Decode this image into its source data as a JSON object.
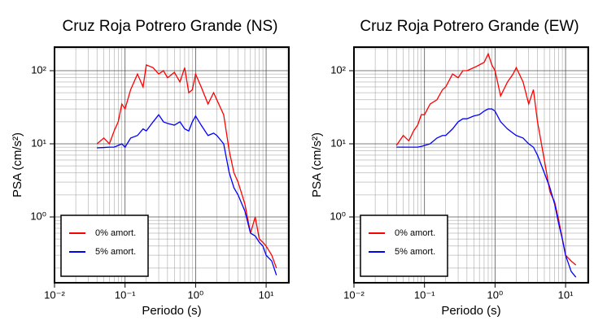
{
  "chart_data": [
    {
      "type": "line",
      "title": "Cruz Roja Potrero Grande (NS)",
      "x_label": "Periodo (s)",
      "y_label": "PSA (cm/s²)",
      "log_x": true,
      "log_y": true,
      "grid": true,
      "legend": "lower left",
      "xlim": [
        0.01,
        21
      ],
      "ylim": [
        0.126,
        210
      ],
      "xticks": [
        {
          "value": 0.01,
          "label": "10⁻²"
        },
        {
          "value": 0.1,
          "label": "10⁻¹"
        },
        {
          "value": 1,
          "label": "10⁰"
        },
        {
          "value": 10,
          "label": "10¹"
        }
      ],
      "yticks": [
        {
          "value": 1,
          "label": "10⁰"
        },
        {
          "value": 10,
          "label": "10¹"
        },
        {
          "value": 100,
          "label": "10²"
        }
      ],
      "x": [
        0.04,
        0.05,
        0.06,
        0.07,
        0.08,
        0.09,
        0.1,
        0.12,
        0.15,
        0.18,
        0.2,
        0.25,
        0.3,
        0.35,
        0.4,
        0.5,
        0.6,
        0.7,
        0.8,
        0.9,
        1,
        1.2,
        1.5,
        1.8,
        2,
        2.5,
        3,
        3.5,
        4,
        5,
        6,
        7,
        8,
        9,
        10,
        12,
        14
      ],
      "series": [
        {
          "name": "0% amort.",
          "color": "#ff0000",
          "values": [
            10,
            12,
            10,
            15,
            20,
            35,
            30,
            55,
            90,
            60,
            120,
            110,
            90,
            100,
            80,
            95,
            70,
            110,
            50,
            55,
            90,
            60,
            35,
            50,
            40,
            25,
            8,
            4,
            3,
            1.5,
            0.6,
            1.0,
            0.5,
            0.45,
            0.4,
            0.3,
            0.2
          ]
        },
        {
          "name": "5% amort.",
          "color": "#0000ff",
          "values": [
            8.8,
            8.9,
            9,
            9,
            9.5,
            10,
            9,
            12,
            13,
            16,
            15,
            20,
            25,
            20,
            19,
            18,
            20,
            16,
            15,
            20,
            24,
            18,
            13,
            14,
            13,
            10,
            4,
            2.5,
            2,
            1.2,
            0.6,
            0.55,
            0.45,
            0.4,
            0.3,
            0.25,
            0.16
          ]
        }
      ]
    },
    {
      "type": "line",
      "title": "Cruz Roja Potrero Grande (EW)",
      "x_label": "Periodo (s)",
      "y_label": "PSA (cm/s²)",
      "log_x": true,
      "log_y": true,
      "grid": true,
      "legend": "lower left",
      "xlim": [
        0.01,
        21
      ],
      "ylim": [
        0.126,
        210
      ],
      "xticks": [
        {
          "value": 0.01,
          "label": "10⁻²"
        },
        {
          "value": 0.1,
          "label": "10⁻¹"
        },
        {
          "value": 1,
          "label": "10⁰"
        },
        {
          "value": 10,
          "label": "10¹"
        }
      ],
      "yticks": [
        {
          "value": 1,
          "label": "10⁰"
        },
        {
          "value": 10,
          "label": "10¹"
        },
        {
          "value": 100,
          "label": "10²"
        }
      ],
      "x": [
        0.04,
        0.05,
        0.06,
        0.07,
        0.08,
        0.09,
        0.1,
        0.12,
        0.15,
        0.18,
        0.2,
        0.25,
        0.3,
        0.35,
        0.4,
        0.5,
        0.6,
        0.7,
        0.8,
        0.9,
        1,
        1.2,
        1.5,
        1.8,
        2,
        2.5,
        3,
        3.5,
        4,
        5,
        6,
        7,
        8,
        9,
        10,
        12,
        14
      ],
      "series": [
        {
          "name": "0% amort.",
          "color": "#ff0000",
          "values": [
            9.5,
            13,
            11,
            15,
            18,
            25,
            25,
            35,
            40,
            55,
            60,
            90,
            80,
            100,
            100,
            110,
            120,
            130,
            170,
            120,
            100,
            45,
            70,
            90,
            110,
            70,
            35,
            55,
            20,
            6,
            2.2,
            1.6,
            0.9,
            0.5,
            0.3,
            0.25,
            0.22
          ]
        },
        {
          "name": "5% amort.",
          "color": "#0000ff",
          "values": [
            9,
            9,
            9,
            9,
            9,
            9.2,
            9.5,
            10,
            12,
            13,
            13,
            16,
            20,
            22,
            22,
            24,
            25,
            28,
            30,
            30,
            28,
            20,
            16,
            14,
            13,
            12,
            10,
            9,
            7,
            4,
            2.5,
            1.5,
            0.8,
            0.5,
            0.3,
            0.18,
            0.15
          ]
        }
      ]
    }
  ]
}
